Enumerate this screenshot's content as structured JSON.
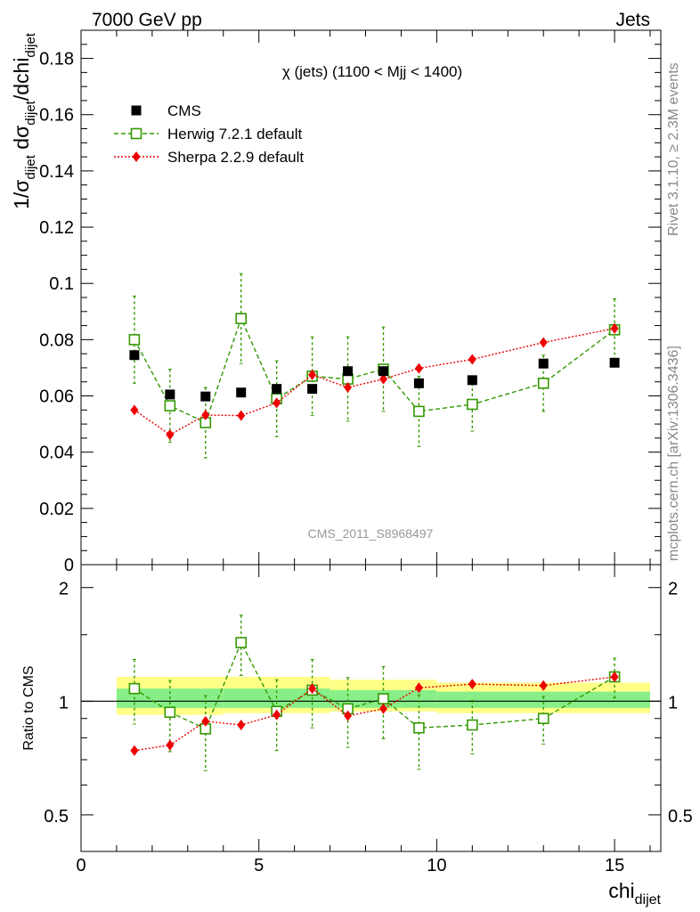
{
  "header": {
    "left": "7000 GeV pp",
    "right": "Jets"
  },
  "side": {
    "rivet": "Rivet 3.1.10, ≥ 2.3M events",
    "mcplots": "mcplots.cern.ch [arXiv:1306.3436]"
  },
  "colors": {
    "cms": "#000000",
    "herwig": "#339900",
    "sherpa": "#ee0000",
    "band_outer": "#ffff88",
    "band_inner": "#88ee88"
  },
  "chart_data": [
    {
      "type": "scatter",
      "title": "χ (jets) (1100 < Mjj < 1400)",
      "watermark": "CMS_2011_S8968497",
      "ylabel": "1/σdijet dσdijet/dchidijet",
      "ylabel_parts": {
        "a": "1/σ",
        "b": "dijet",
        "c": " dσ",
        "d": "dijet",
        "e": "/dchi",
        "f": "dijet"
      },
      "xlim": [
        0,
        16.3
      ],
      "ylim": [
        0,
        0.19
      ],
      "y_ticks": [
        0,
        0.02,
        0.04,
        0.06,
        0.08,
        0.1,
        0.12,
        0.14,
        0.16,
        0.18
      ],
      "y_tick_labels": [
        "0",
        "0.02",
        "0.04",
        "0.06",
        "0.08",
        "0.1",
        "0.12",
        "0.14",
        "0.16",
        "0.18"
      ],
      "legend_position": "top-left",
      "series": [
        {
          "name": "CMS",
          "key": "cms",
          "marker": "filled-square",
          "line": "none",
          "x": [
            1.5,
            2.5,
            3.5,
            4.5,
            5.5,
            6.5,
            7.5,
            8.5,
            9.5,
            11,
            13,
            15
          ],
          "y": [
            0.0745,
            0.0605,
            0.0598,
            0.0612,
            0.0625,
            0.0625,
            0.0688,
            0.0688,
            0.0645,
            0.0656,
            0.0715,
            0.0718
          ]
        },
        {
          "name": "Herwig 7.2.1 default",
          "key": "herwig",
          "marker": "open-square",
          "line": "dashed",
          "x": [
            1.5,
            2.5,
            3.5,
            4.5,
            5.5,
            6.5,
            7.5,
            8.5,
            9.5,
            11,
            13,
            15
          ],
          "y": [
            0.08,
            0.0565,
            0.0505,
            0.0875,
            0.059,
            0.067,
            0.066,
            0.0695,
            0.0545,
            0.057,
            0.0645,
            0.0835
          ],
          "err": [
            0.0155,
            0.013,
            0.0125,
            0.016,
            0.0135,
            0.014,
            0.015,
            0.015,
            0.0125,
            0.0095,
            0.01,
            0.011
          ]
        },
        {
          "name": "Sherpa 2.2.9 default",
          "key": "sherpa",
          "marker": "filled-diamond",
          "line": "dotted",
          "x": [
            1.5,
            2.5,
            3.5,
            4.5,
            5.5,
            6.5,
            7.5,
            8.5,
            9.5,
            11,
            13,
            15
          ],
          "y": [
            0.055,
            0.0462,
            0.0532,
            0.053,
            0.0575,
            0.0675,
            0.063,
            0.066,
            0.0698,
            0.073,
            0.079,
            0.084
          ],
          "err": [
            0.0015,
            0.0015,
            0.0015,
            0.001,
            0.0015,
            0.0015,
            0.0015,
            0.0015,
            0.0015,
            0.001,
            0.001,
            0.001
          ]
        }
      ]
    },
    {
      "type": "scatter",
      "ylabel": "Ratio to CMS",
      "xlabel": "chidijet",
      "xlabel_parts": {
        "a": "chi",
        "b": "dijet"
      },
      "xlim": [
        0,
        16.3
      ],
      "ylim": [
        0.4,
        2.3
      ],
      "y_scale": "log",
      "x_ticks": [
        0,
        5,
        10,
        15
      ],
      "x_tick_labels": [
        "0",
        "5",
        "10",
        "15"
      ],
      "y_ticks": [
        0.5,
        1,
        2
      ],
      "y_tick_labels": [
        "0.5",
        "1",
        "2"
      ],
      "bands": [
        {
          "x0": 1,
          "x1": 4,
          "outer": [
            0.92,
            1.16
          ],
          "inner": [
            0.96,
            1.08
          ]
        },
        {
          "x0": 4,
          "x1": 7,
          "outer": [
            0.93,
            1.16
          ],
          "inner": [
            0.96,
            1.08
          ]
        },
        {
          "x0": 7,
          "x1": 10,
          "outer": [
            0.94,
            1.14
          ],
          "inner": [
            0.96,
            1.07
          ]
        },
        {
          "x0": 10,
          "x1": 16,
          "outer": [
            0.93,
            1.12
          ],
          "inner": [
            0.96,
            1.06
          ]
        }
      ],
      "series": [
        {
          "name": "Herwig 7.2.1 default",
          "key": "herwig",
          "marker": "open-square",
          "line": "dashed",
          "x": [
            1.5,
            2.5,
            3.5,
            4.5,
            5.5,
            6.5,
            7.5,
            8.5,
            9.5,
            11,
            13,
            15
          ],
          "y": [
            1.08,
            0.935,
            0.845,
            1.43,
            0.94,
            1.07,
            0.955,
            1.015,
            0.85,
            0.865,
            0.9,
            1.16
          ],
          "err": [
            0.21,
            0.2,
            0.19,
            0.26,
            0.2,
            0.22,
            0.2,
            0.22,
            0.19,
            0.14,
            0.13,
            0.14
          ]
        },
        {
          "name": "Sherpa 2.2.9 default",
          "key": "sherpa",
          "marker": "filled-diamond",
          "line": "dotted",
          "x": [
            1.5,
            2.5,
            3.5,
            4.5,
            5.5,
            6.5,
            7.5,
            8.5,
            9.5,
            11,
            13,
            15
          ],
          "y": [
            0.74,
            0.765,
            0.885,
            0.865,
            0.92,
            1.08,
            0.915,
            0.955,
            1.085,
            1.11,
            1.1,
            1.16
          ],
          "err": [
            0.02,
            0.025,
            0.02,
            0.02,
            0.02,
            0.02,
            0.02,
            0.02,
            0.02,
            0.015,
            0.015,
            0.015
          ]
        }
      ]
    }
  ]
}
